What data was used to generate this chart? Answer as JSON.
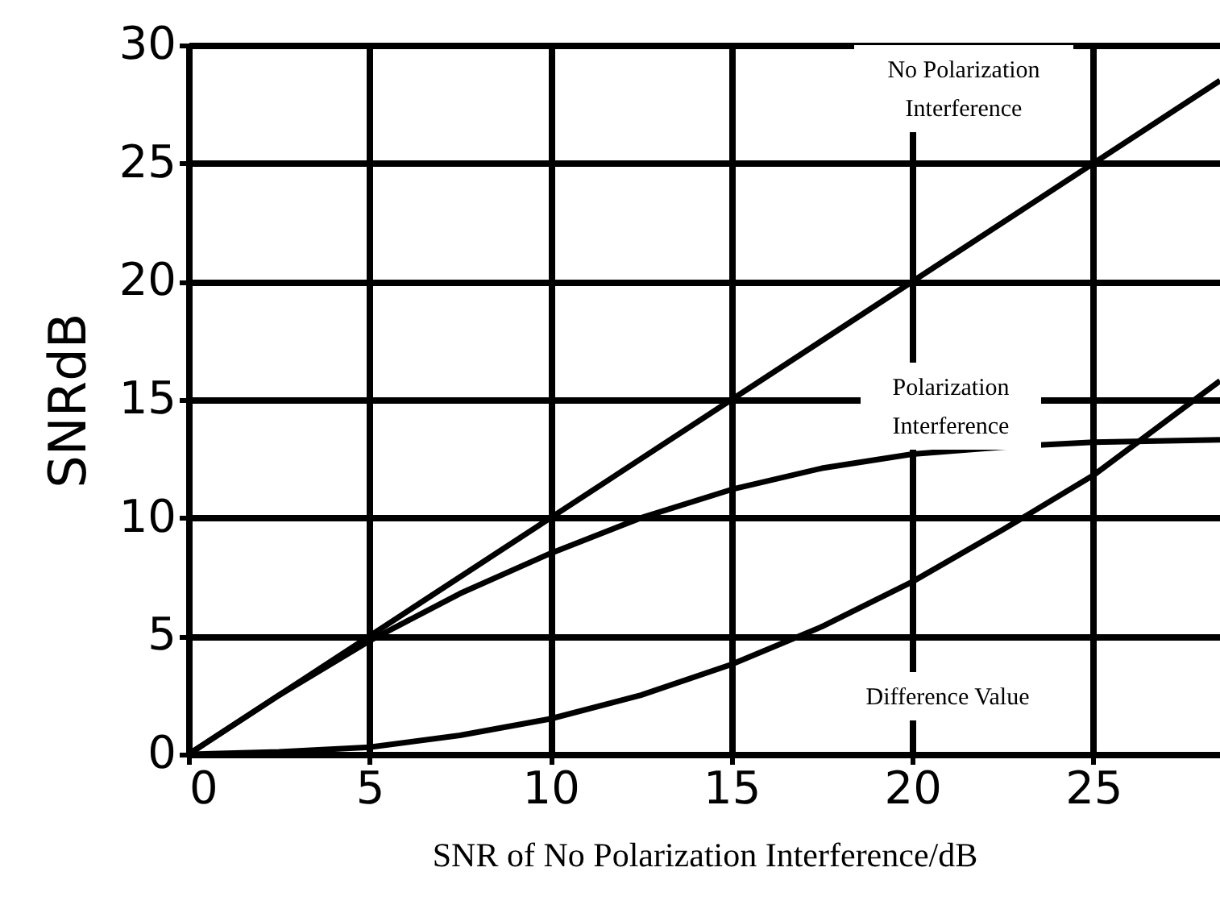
{
  "chart_data": {
    "type": "line",
    "xlabel": "SNR of No Polarization Interference/dB",
    "ylabel": "SNRdB",
    "xlim": [
      0,
      28.5
    ],
    "ylim": [
      0,
      30
    ],
    "xticks": [
      0,
      5,
      10,
      15,
      20,
      25
    ],
    "yticks": [
      0,
      5,
      10,
      15,
      20,
      25,
      30
    ],
    "grid": true,
    "marker": "none",
    "line_style": "solid",
    "series": [
      {
        "color": "#000000",
        "x": [
          0,
          28.5
        ],
        "values": [
          0,
          28.5
        ]
      },
      {
        "color": "#000000",
        "x": [
          0,
          2.5,
          5,
          7.5,
          10,
          12.5,
          15,
          17.5,
          20,
          22.5,
          25,
          28.5
        ],
        "values": [
          0,
          2.5,
          4.8,
          6.8,
          8.5,
          10,
          11.2,
          12.1,
          12.7,
          13,
          13.2,
          13.3
        ]
      },
      {
        "color": "#000000",
        "x": [
          0,
          2.5,
          5,
          7.5,
          10,
          12.5,
          15,
          17.5,
          20,
          22.5,
          25,
          28.5
        ],
        "values": [
          0,
          0.1,
          0.3,
          0.8,
          1.5,
          2.5,
          3.8,
          5.4,
          7.3,
          9.5,
          11.8,
          15.8
        ]
      }
    ],
    "annotations": [
      "No Polarization\nInterference",
      "Polarization\nInterference",
      "Difference Value"
    ]
  }
}
